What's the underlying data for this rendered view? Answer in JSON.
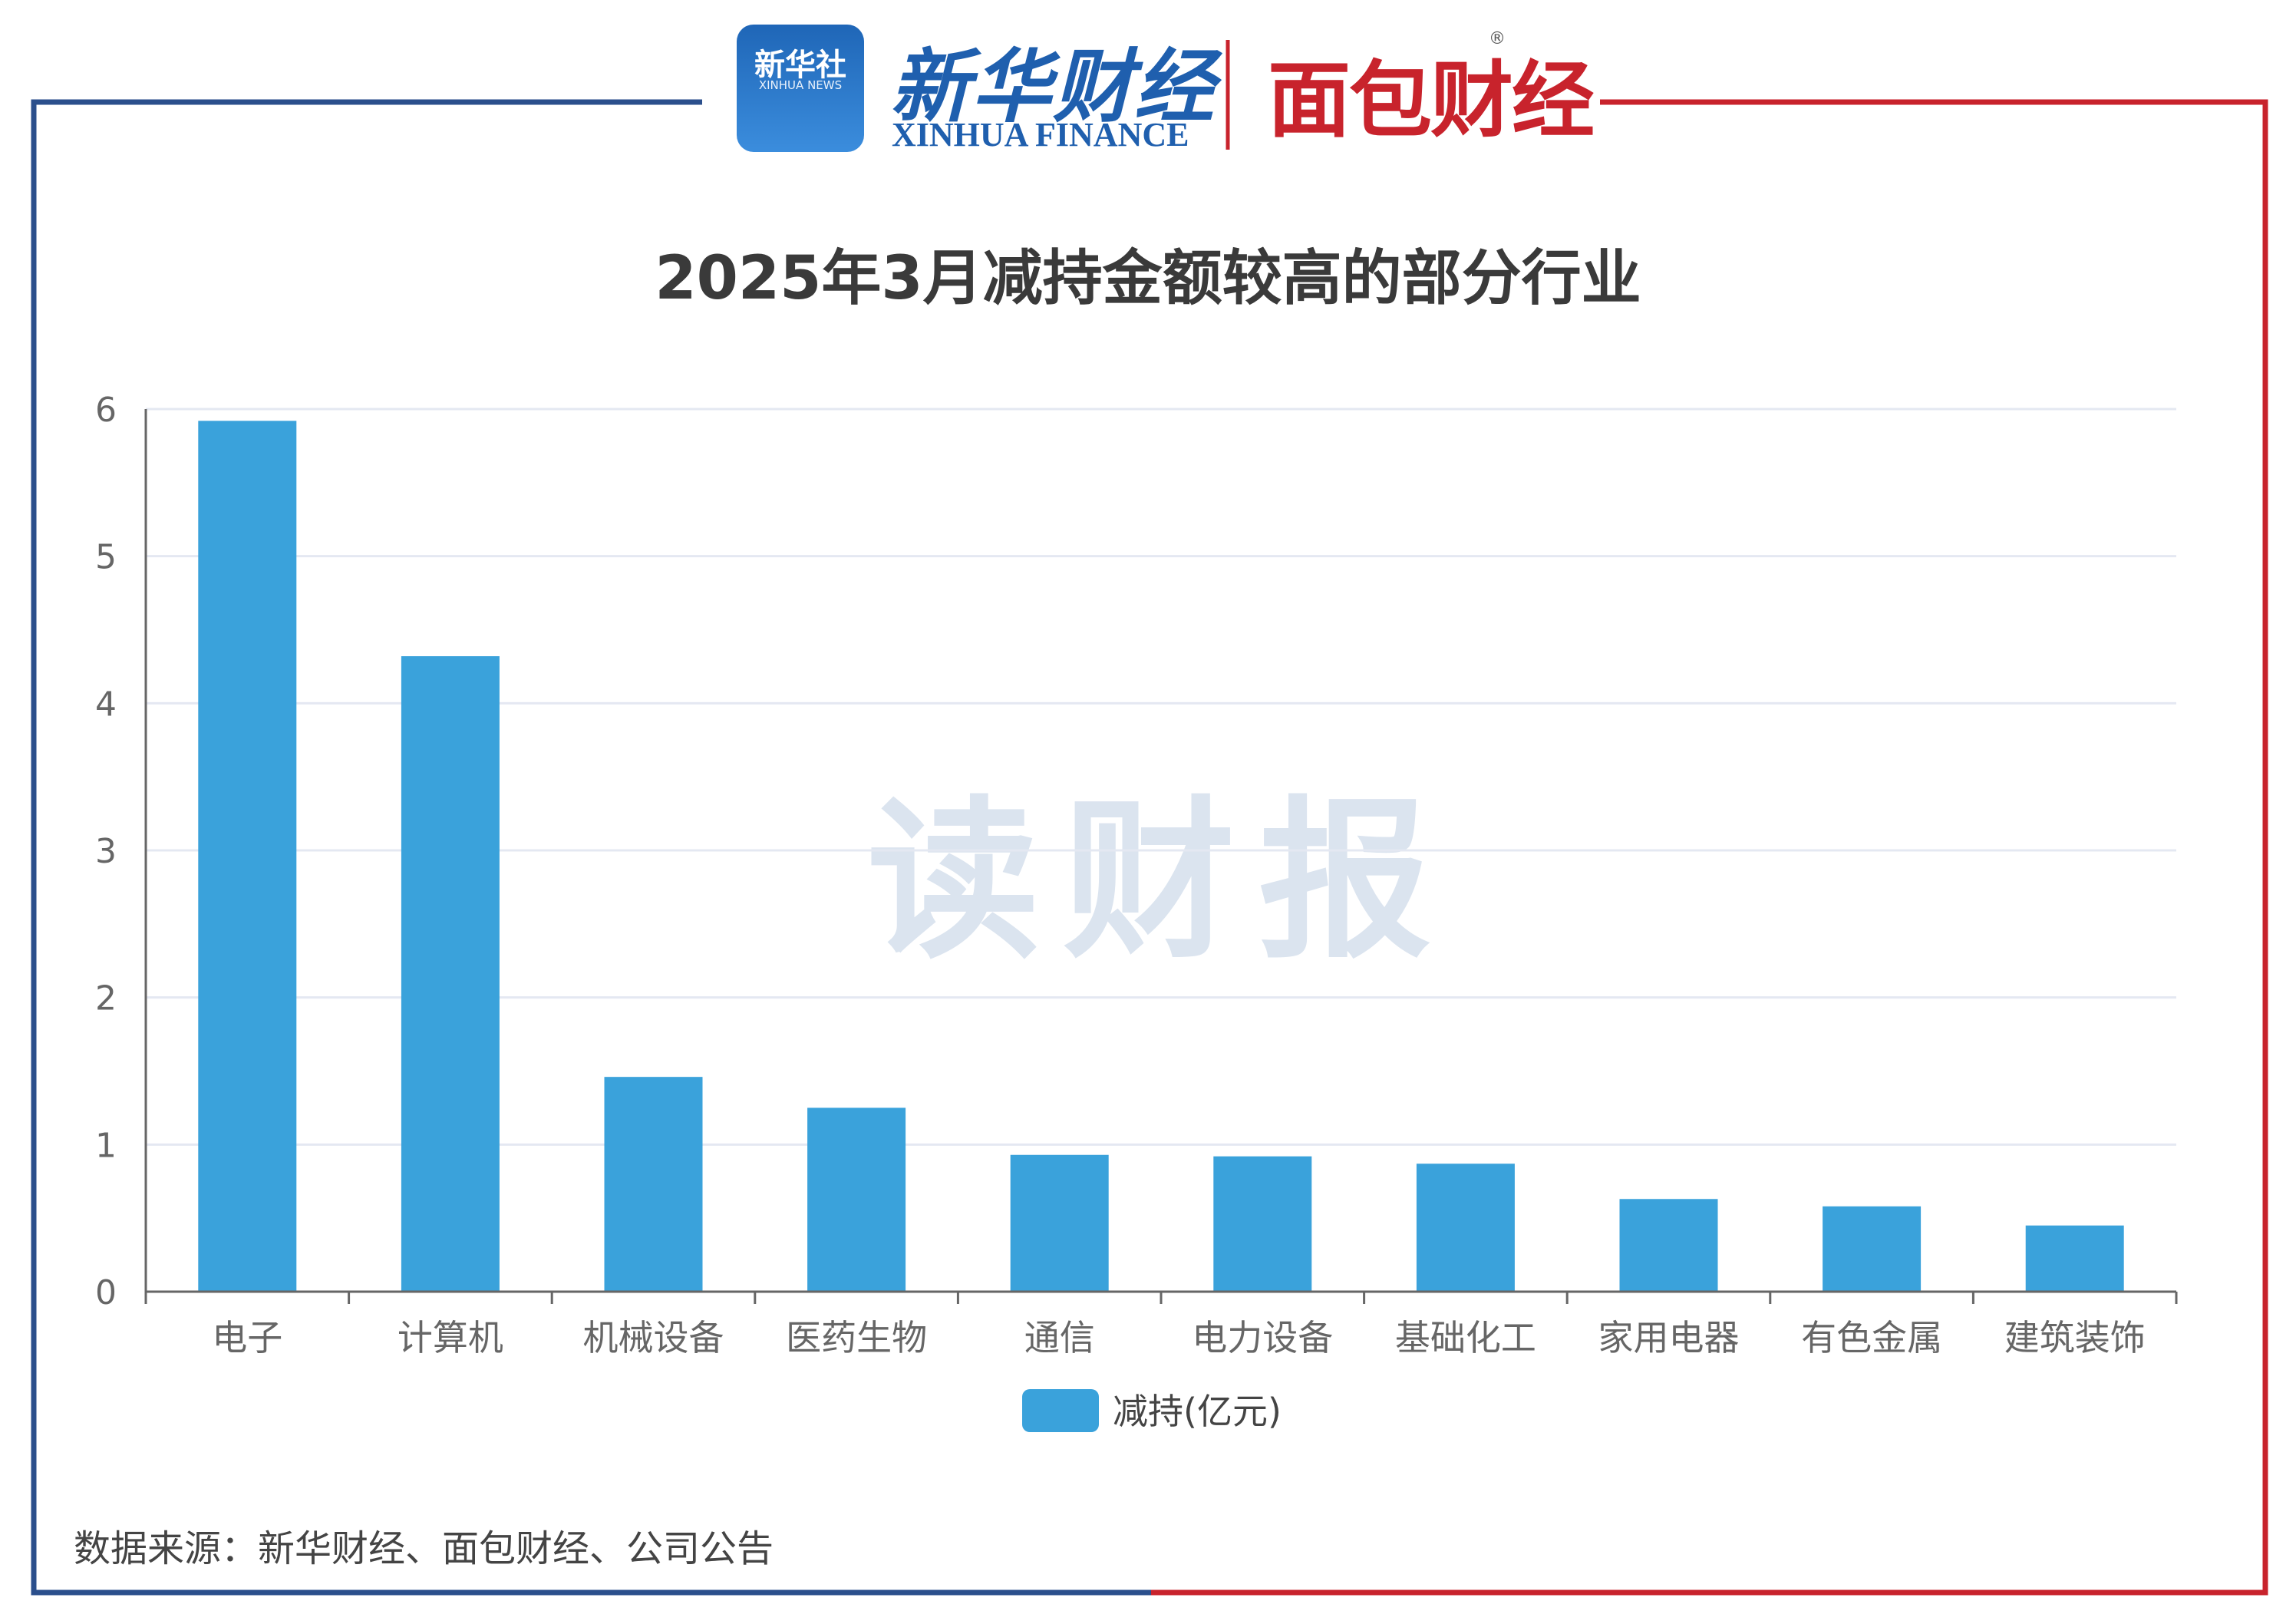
{
  "branding": {
    "xinhua_badge_cn": "新华社",
    "xinhua_badge_en": "XINHUA NEWS",
    "xinhua_finance_cn": "新华财经",
    "xinhua_finance_en": "XINHUA FINANCE",
    "mianbao_cn": "面包财经",
    "registered_mark": "®",
    "watermark": "读财报"
  },
  "footer": {
    "source": "数据来源：新华财经、面包财经、公司公告"
  },
  "colors": {
    "bar": "#3aa2db",
    "frame_left": "#2b4f8c",
    "frame_right": "#c8232c",
    "grid": "#e4e8f2",
    "axis": "#666666",
    "tick_text": "#666666"
  },
  "chart_data": {
    "type": "bar",
    "title": "2025年3月减持金额较高的部分行业",
    "categories": [
      "电子",
      "计算机",
      "机械设备",
      "医药生物",
      "通信",
      "电力设备",
      "基础化工",
      "家用电器",
      "有色金属",
      "建筑装饰"
    ],
    "series": [
      {
        "name": "减持(亿元)",
        "values": [
          5.92,
          4.32,
          1.46,
          1.25,
          0.93,
          0.92,
          0.87,
          0.63,
          0.58,
          0.45
        ]
      }
    ],
    "ylim": [
      0,
      6
    ],
    "yticks": [
      "0",
      "1",
      "2",
      "3",
      "4",
      "5",
      "6"
    ],
    "grid": true,
    "legend_position": "bottom"
  }
}
